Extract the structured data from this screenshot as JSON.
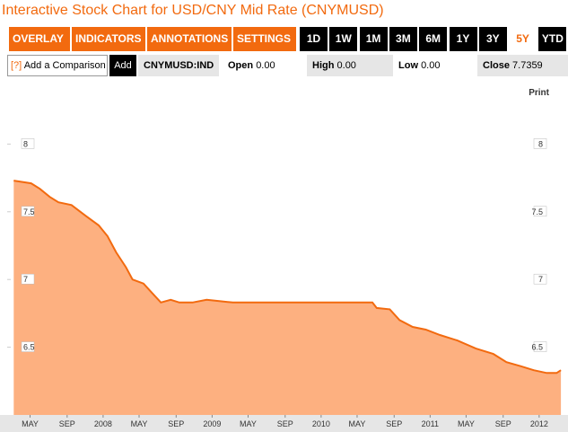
{
  "header": {
    "title": "Interactive Stock Chart for USD/CNY Mid Rate (CNYMUSD)"
  },
  "toolbar": {
    "menus": [
      "OVERLAY",
      "INDICATORS",
      "ANNOTATIONS",
      "SETTINGS"
    ],
    "periods": [
      "1D",
      "1W",
      "1M",
      "3M",
      "6M",
      "1Y",
      "3Y",
      "5Y",
      "YTD"
    ],
    "selected_period": "5Y"
  },
  "info": {
    "help": "[?]",
    "comparison_placeholder": "Add a Comparison",
    "add_button": "Add",
    "ticker": "CNYMUSD:IND",
    "open": {
      "label": "Open",
      "value": "0.00"
    },
    "high": {
      "label": "High",
      "value": "0.00"
    },
    "low": {
      "label": "Low",
      "value": "0.00"
    },
    "close": {
      "label": "Close",
      "value": "7.7359"
    }
  },
  "print": "Print",
  "chart_data": {
    "type": "area",
    "x": [
      2007.18,
      2007.34,
      2007.42,
      2007.51,
      2007.59,
      2007.71,
      2007.84,
      2007.96,
      2008.04,
      2008.12,
      2008.21,
      2008.27,
      2008.37,
      2008.45,
      2008.53,
      2008.62,
      2008.7,
      2008.82,
      2008.95,
      2009.19,
      2009.52,
      2009.93,
      2010.47,
      2010.51,
      2010.63,
      2010.72,
      2010.84,
      2010.96,
      2011.09,
      2011.25,
      2011.42,
      2011.58,
      2011.7,
      2011.83,
      2011.95,
      2012.07,
      2012.16,
      2012.2
    ],
    "series": [
      {
        "name": "CNYMUSD",
        "color": "#f26a0f",
        "fill": "#fdb080",
        "values": [
          7.73,
          7.71,
          7.67,
          7.61,
          7.57,
          7.55,
          7.47,
          7.4,
          7.32,
          7.2,
          7.09,
          7.0,
          6.97,
          6.9,
          6.83,
          6.85,
          6.83,
          6.83,
          6.85,
          6.83,
          6.83,
          6.83,
          6.83,
          6.79,
          6.78,
          6.7,
          6.65,
          6.63,
          6.59,
          6.55,
          6.49,
          6.45,
          6.39,
          6.36,
          6.33,
          6.31,
          6.31,
          6.33
        ]
      }
    ],
    "xlim": [
      2007.12,
      2012.24
    ],
    "xticks": [
      {
        "value": 2007.33,
        "label": "MAY"
      },
      {
        "value": 2007.67,
        "label": "SEP"
      },
      2008,
      {
        "value": 2008.33,
        "label": "MAY"
      },
      {
        "value": 2008.67,
        "label": "SEP"
      },
      2009,
      {
        "value": 2009.33,
        "label": "MAY"
      },
      {
        "value": 2009.67,
        "label": "SEP"
      },
      2010,
      {
        "value": 2010.33,
        "label": "MAY"
      },
      {
        "value": 2010.67,
        "label": "SEP"
      },
      2011,
      {
        "value": 2011.33,
        "label": "MAY"
      },
      {
        "value": 2011.67,
        "label": "SEP"
      },
      2012
    ],
    "ylim": [
      6.0,
      8.48
    ],
    "yticks": [
      8,
      7.5,
      7,
      6.5
    ]
  }
}
